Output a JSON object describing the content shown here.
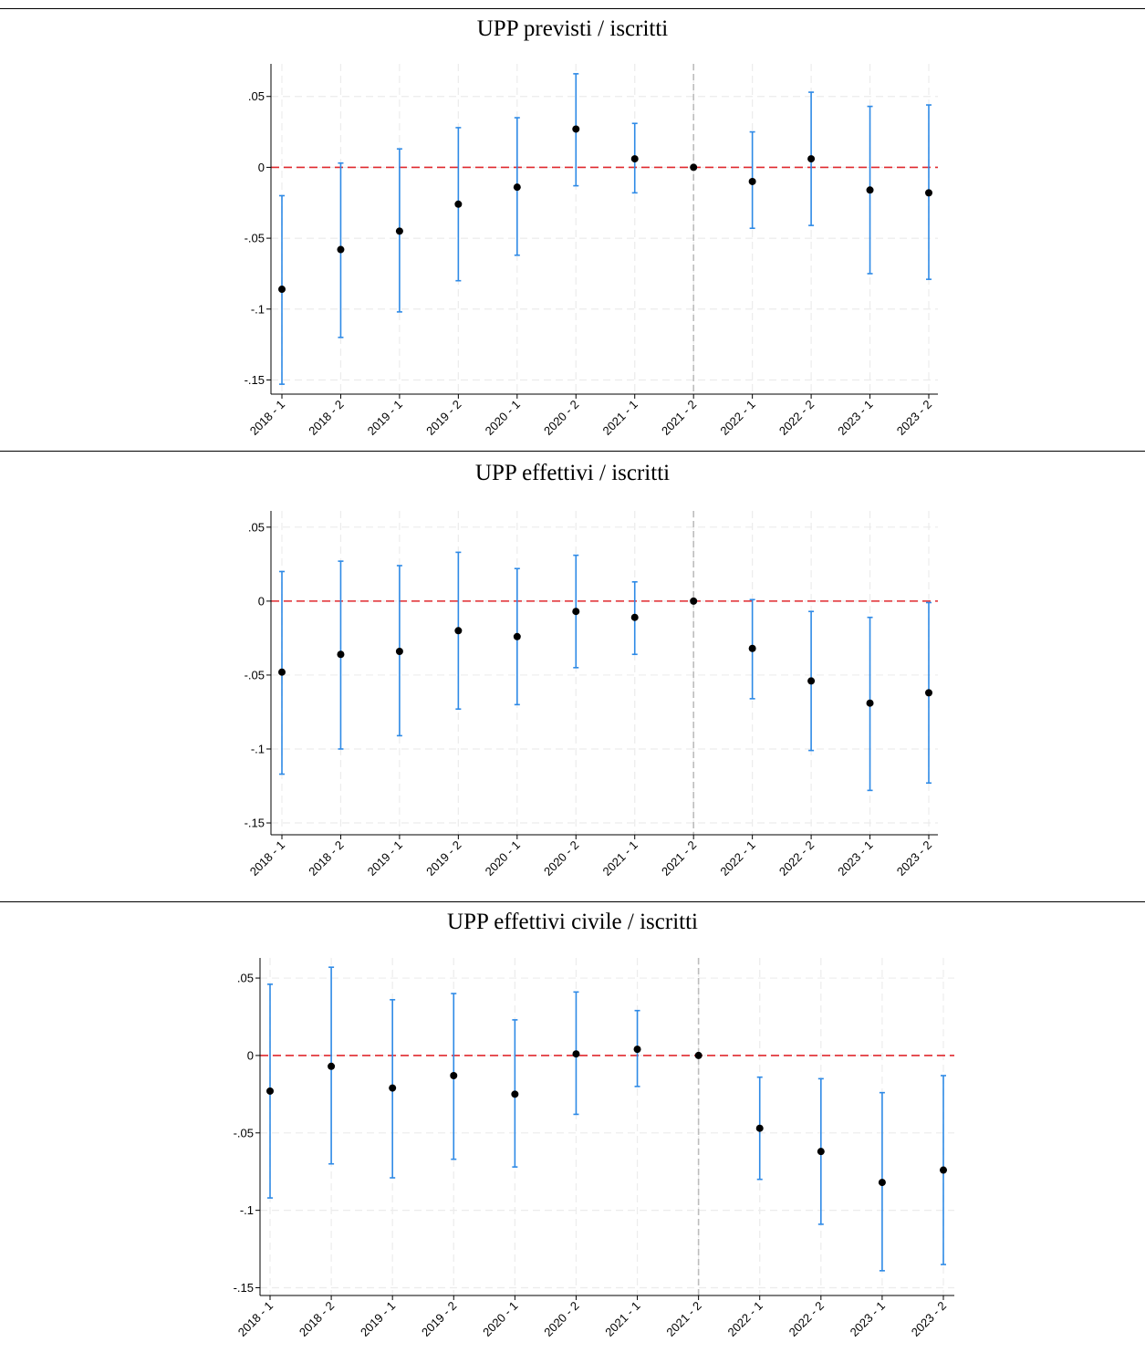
{
  "colors": {
    "ci": "#2e8ae6",
    "point": "#000000",
    "zero_line": "#e0292e",
    "event_line": "#bdbdbd",
    "grid": "#ececec"
  },
  "chart_data": [
    {
      "type": "scatter",
      "title": "UPP previsti / iscritti",
      "categories": [
        "2018 - 1",
        "2018 - 2",
        "2019 - 1",
        "2019 - 2",
        "2020 - 1",
        "2020 - 2",
        "2021 - 1",
        "2021 - 2",
        "2022 - 1",
        "2022 - 2",
        "2023 - 1",
        "2023 - 2"
      ],
      "y_ticks": [
        0.05,
        0,
        -0.05,
        -0.1,
        -0.15
      ],
      "y_tick_labels": [
        ".05",
        "0",
        "-.05",
        "-.1",
        "-.15"
      ],
      "ylim": [
        -0.16,
        0.073
      ],
      "reference_line_y": 0,
      "event_line_category": "2021 - 2",
      "grid": true,
      "series": [
        {
          "values": [
            -0.086,
            -0.058,
            -0.045,
            -0.026,
            -0.014,
            0.027,
            0.006,
            0.0,
            -0.01,
            0.006,
            -0.016,
            -0.018
          ],
          "ci_low": [
            -0.153,
            -0.12,
            -0.102,
            -0.08,
            -0.062,
            -0.013,
            -0.018,
            0.0,
            -0.043,
            -0.041,
            -0.075,
            -0.079
          ],
          "ci_high": [
            -0.02,
            0.003,
            0.013,
            0.028,
            0.035,
            0.066,
            0.031,
            0.0,
            0.025,
            0.053,
            0.043,
            0.044
          ]
        }
      ]
    },
    {
      "type": "scatter",
      "title": "UPP effettivi / iscritti",
      "categories": [
        "2018 - 1",
        "2018 - 2",
        "2019 - 1",
        "2019 - 2",
        "2020 - 1",
        "2020 - 2",
        "2021 - 1",
        "2021 - 2",
        "2022 - 1",
        "2022 - 2",
        "2023 - 1",
        "2023 - 2"
      ],
      "y_ticks": [
        0.05,
        0,
        -0.05,
        -0.1,
        -0.15
      ],
      "y_tick_labels": [
        ".05",
        "0",
        "-.05",
        "-.1",
        "-.15"
      ],
      "ylim": [
        -0.158,
        0.061
      ],
      "reference_line_y": 0,
      "event_line_category": "2021 - 2",
      "grid": true,
      "series": [
        {
          "values": [
            -0.048,
            -0.036,
            -0.034,
            -0.02,
            -0.024,
            -0.007,
            -0.011,
            0.0,
            -0.032,
            -0.054,
            -0.069,
            -0.062
          ],
          "ci_low": [
            -0.117,
            -0.1,
            -0.091,
            -0.073,
            -0.07,
            -0.045,
            -0.036,
            0.0,
            -0.066,
            -0.101,
            -0.128,
            -0.123
          ],
          "ci_high": [
            0.02,
            0.027,
            0.024,
            0.033,
            0.022,
            0.031,
            0.013,
            0.0,
            0.001,
            -0.007,
            -0.011,
            -0.001
          ]
        }
      ]
    },
    {
      "type": "scatter",
      "title": "UPP effettivi civile / iscritti",
      "categories": [
        "2018 - 1",
        "2018 - 2",
        "2019 - 1",
        "2019 - 2",
        "2020 - 1",
        "2020 - 2",
        "2021 - 1",
        "2021 - 2",
        "2022 - 1",
        "2022 - 2",
        "2023 - 1",
        "2023 - 2"
      ],
      "y_ticks": [
        0.05,
        0,
        -0.05,
        -0.1,
        -0.15
      ],
      "y_tick_labels": [
        ".05",
        "0",
        "-.05",
        "-.1",
        "-.15"
      ],
      "ylim": [
        -0.155,
        0.063
      ],
      "reference_line_y": 0,
      "event_line_category": "2021 - 2",
      "grid": true,
      "series": [
        {
          "values": [
            -0.023,
            -0.007,
            -0.021,
            -0.013,
            -0.025,
            0.001,
            0.004,
            0.0,
            -0.047,
            -0.062,
            -0.082,
            -0.074
          ],
          "ci_low": [
            -0.092,
            -0.07,
            -0.079,
            -0.067,
            -0.072,
            -0.038,
            -0.02,
            0.0,
            -0.08,
            -0.109,
            -0.139,
            -0.135
          ],
          "ci_high": [
            0.046,
            0.057,
            0.036,
            0.04,
            0.023,
            0.041,
            0.029,
            0.0,
            -0.014,
            -0.015,
            -0.024,
            -0.013
          ]
        }
      ]
    }
  ]
}
